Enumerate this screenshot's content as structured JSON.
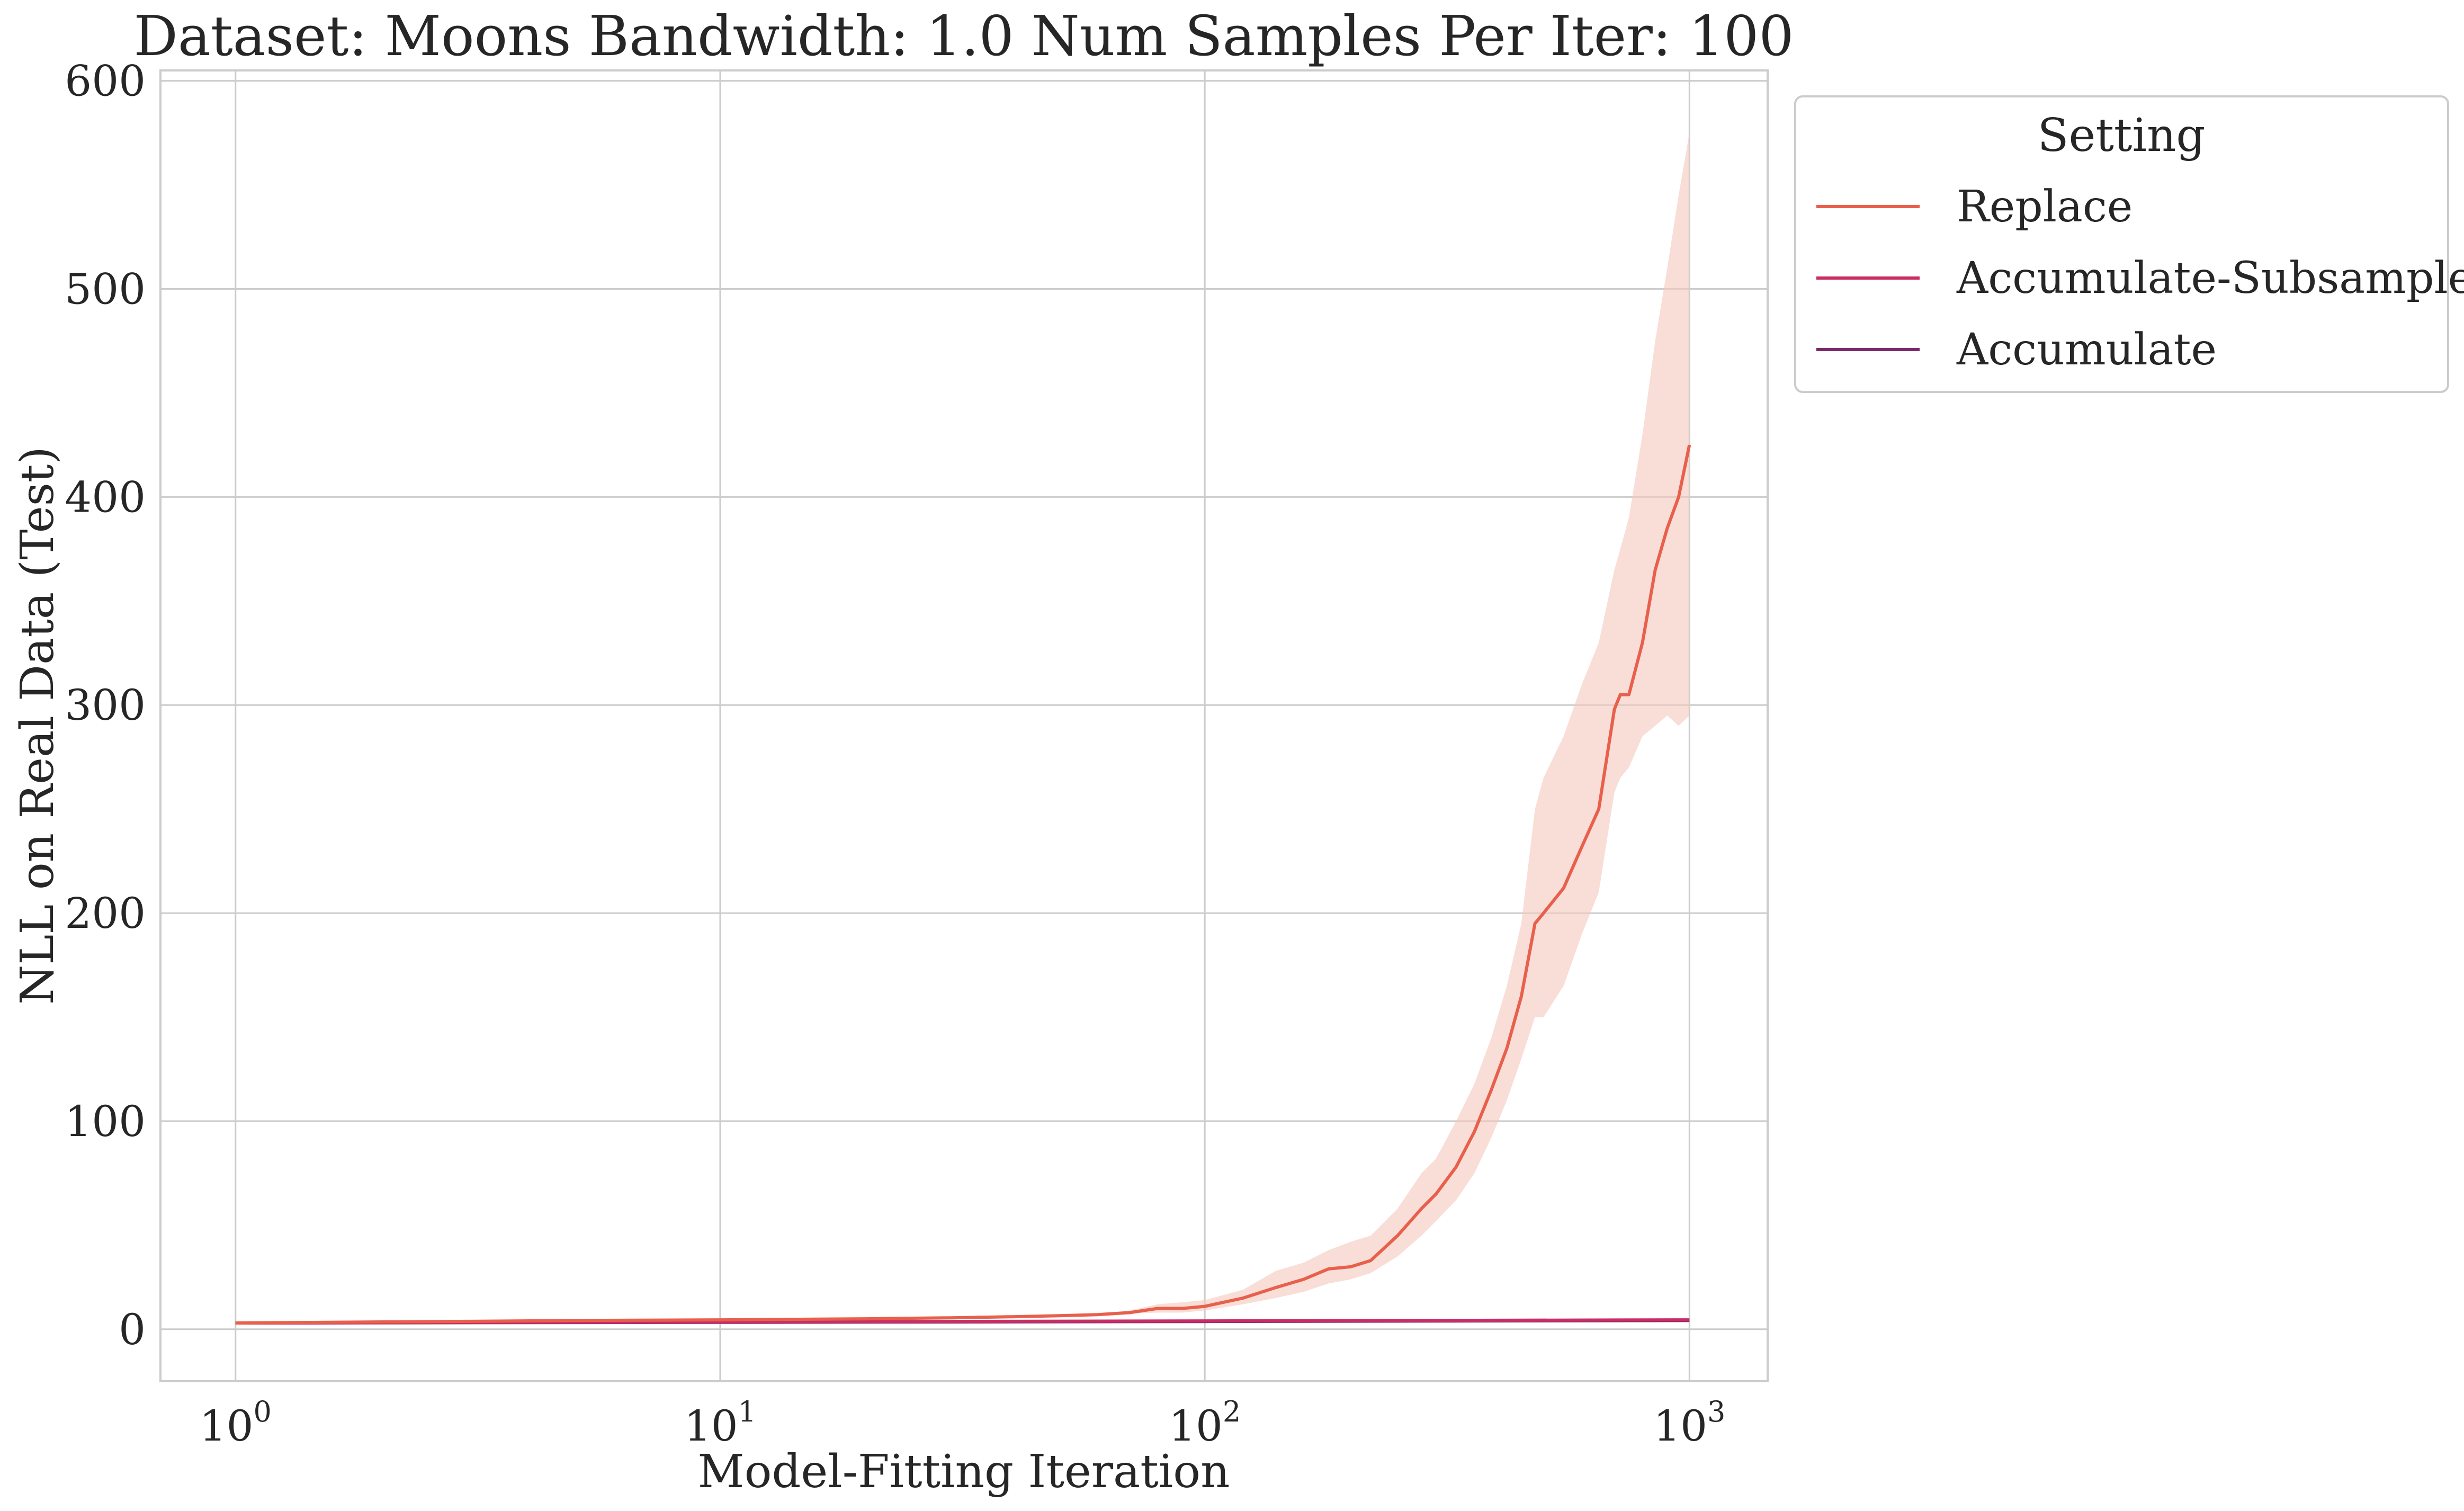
{
  "chart_data": {
    "type": "line",
    "title": "Dataset: Moons Bandwidth: 1.0 Num Samples Per Iter: 100",
    "xlabel": "Model-Fitting Iteration",
    "ylabel": "NLL on Real Data (Test)",
    "xscale": "log",
    "xlim": [
      0.7,
      1450
    ],
    "ylim": [
      -25,
      605
    ],
    "xticks": [
      {
        "value": 1,
        "base": "10",
        "exp": "0"
      },
      {
        "value": 10,
        "base": "10",
        "exp": "1"
      },
      {
        "value": 100,
        "base": "10",
        "exp": "2"
      },
      {
        "value": 1000,
        "base": "10",
        "exp": "3"
      }
    ],
    "yticks": [
      0,
      100,
      200,
      300,
      400,
      500,
      600
    ],
    "grid": true,
    "legend": {
      "title": "Setting",
      "placement": "outside-top-right"
    },
    "series": [
      {
        "name": "Replace",
        "color": "#e8604c",
        "band_color": "#f5c6bd",
        "x": [
          1,
          2,
          3,
          5,
          10,
          20,
          30,
          40,
          50,
          60,
          70,
          80,
          90,
          100,
          120,
          140,
          160,
          180,
          200,
          220,
          250,
          280,
          300,
          330,
          360,
          390,
          420,
          450,
          480,
          500,
          550,
          600,
          650,
          700,
          720,
          750,
          800,
          850,
          900,
          950,
          1000
        ],
        "y": [
          3,
          3.5,
          3.8,
          4.2,
          4.5,
          5,
          5.5,
          6,
          6.5,
          7,
          8,
          10,
          10,
          11,
          15,
          20,
          24,
          29,
          30,
          33,
          45,
          58,
          65,
          78,
          95,
          115,
          135,
          160,
          195,
          200,
          212,
          232,
          250,
          298,
          305,
          305,
          330,
          365,
          385,
          400,
          425
        ],
        "lower": [
          3,
          3.5,
          3.8,
          4.2,
          4.5,
          5,
          5.5,
          6,
          6.5,
          7,
          7.5,
          8,
          8,
          9,
          12,
          15,
          18,
          22,
          24,
          27,
          35,
          45,
          52,
          62,
          75,
          92,
          110,
          130,
          150,
          150,
          165,
          190,
          210,
          258,
          265,
          270,
          285,
          290,
          295,
          290,
          295
        ],
        "upper": [
          3,
          3.5,
          3.8,
          4.2,
          4.5,
          5,
          5.5,
          6,
          6.5,
          7,
          9,
          12,
          13,
          14,
          19,
          28,
          32,
          38,
          42,
          45,
          58,
          75,
          82,
          100,
          118,
          140,
          165,
          195,
          250,
          265,
          285,
          310,
          330,
          365,
          375,
          390,
          430,
          475,
          510,
          545,
          575
        ]
      },
      {
        "name": "Accumulate-Subsample",
        "color": "#c92d64",
        "x": [
          1,
          10,
          100,
          1000
        ],
        "y": [
          3,
          3.5,
          4,
          4.5
        ]
      },
      {
        "name": "Accumulate",
        "color": "#7a2a6b",
        "x": [
          1,
          10,
          100,
          1000
        ],
        "y": [
          3,
          3.3,
          3.7,
          4.2
        ]
      }
    ]
  }
}
